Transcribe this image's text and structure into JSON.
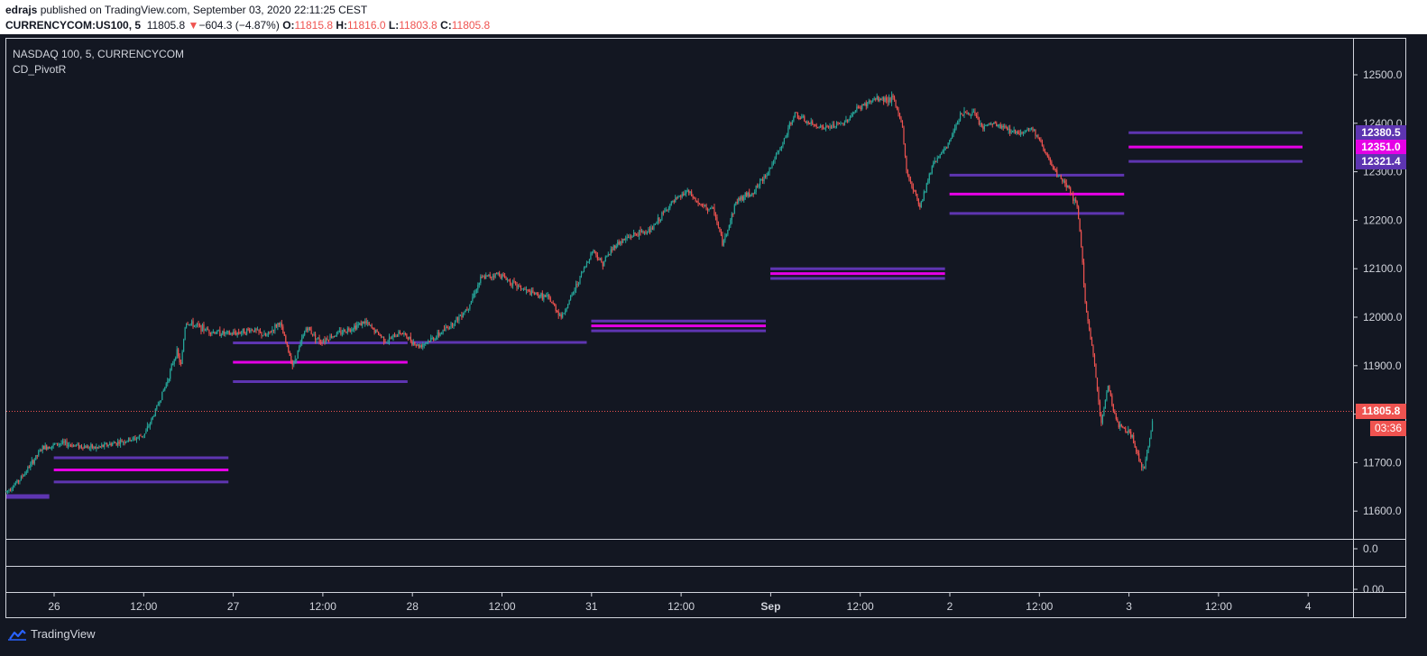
{
  "header": {
    "publisher": "edrajs",
    "published_text": "published on TradingView.com, September 03, 2020 22:11:25 CEST",
    "symbol": "CURRENCYCOM:US100, 5",
    "last": "11805.8",
    "change_arrow": "▼",
    "change": "−604.3 (−4.87%)",
    "o_label": "O:",
    "o_value": "11815.8",
    "h_label": "H:",
    "h_value": "11816.0",
    "l_label": "L:",
    "l_value": "11803.8",
    "c_label": "C:",
    "c_value": "11805.8"
  },
  "legend": {
    "title": "NASDAQ 100, 5, CURRENCYCOM",
    "indicator": "CD_PivotR"
  },
  "footer": {
    "brand": "TradingView"
  },
  "colors": {
    "background": "#131722",
    "up": "#26a69a",
    "down": "#ef5350",
    "pivot": "#e600e6",
    "support_resistance": "#5e35b1",
    "price_line": "#ef5350"
  },
  "price_tags": {
    "r1": "12380.5",
    "pivot": "12351.0",
    "s1": "12321.4",
    "last": "11805.8",
    "countdown": "03:36"
  },
  "sub_pane_labels": [
    "0.0",
    "0.00"
  ],
  "chart_data": {
    "type": "candlestick",
    "title": "NASDAQ 100, 5, CURRENCYCOM",
    "y_ticks": [
      "12500.0",
      "12400.0",
      "12300.0",
      "12200.0",
      "12100.0",
      "12000.0",
      "11900.0",
      "11800.0",
      "11700.0",
      "11600.0"
    ],
    "y_range": [
      11540,
      12560
    ],
    "x_ticks": [
      "26",
      "12:00",
      "27",
      "12:00",
      "28",
      "12:00",
      "31",
      "12:00",
      "Sep",
      "12:00",
      "2",
      "12:00",
      "3",
      "12:00",
      "4"
    ],
    "price_path": [
      [
        0.0,
        11640
      ],
      [
        0.3,
        11665
      ],
      [
        0.5,
        11690
      ],
      [
        0.8,
        11730
      ],
      [
        1.2,
        11740
      ],
      [
        1.6,
        11735
      ],
      [
        2.0,
        11730
      ],
      [
        2.4,
        11740
      ],
      [
        2.9,
        11750
      ],
      [
        3.1,
        11760
      ],
      [
        3.3,
        11800
      ],
      [
        3.6,
        11870
      ],
      [
        3.8,
        11930
      ],
      [
        3.9,
        11900
      ],
      [
        4.0,
        11990
      ],
      [
        4.3,
        11980
      ],
      [
        4.6,
        11970
      ],
      [
        5.0,
        11965
      ],
      [
        5.5,
        11975
      ],
      [
        5.8,
        11960
      ],
      [
        6.1,
        11990
      ],
      [
        6.4,
        11900
      ],
      [
        6.7,
        11980
      ],
      [
        7.0,
        11950
      ],
      [
        7.5,
        11970
      ],
      [
        8.0,
        11990
      ],
      [
        8.5,
        11950
      ],
      [
        8.8,
        11970
      ],
      [
        9.2,
        11940
      ],
      [
        9.6,
        11960
      ],
      [
        10.0,
        11990
      ],
      [
        10.3,
        12020
      ],
      [
        10.6,
        12080
      ],
      [
        11.0,
        12090
      ],
      [
        11.3,
        12070
      ],
      [
        11.7,
        12050
      ],
      [
        12.1,
        12040
      ],
      [
        12.4,
        12000
      ],
      [
        12.8,
        12080
      ],
      [
        13.1,
        12140
      ],
      [
        13.3,
        12110
      ],
      [
        13.6,
        12150
      ],
      [
        14.0,
        12170
      ],
      [
        14.4,
        12180
      ],
      [
        14.8,
        12230
      ],
      [
        15.2,
        12260
      ],
      [
        15.5,
        12230
      ],
      [
        15.8,
        12220
      ],
      [
        16.0,
        12150
      ],
      [
        16.3,
        12240
      ],
      [
        16.7,
        12260
      ],
      [
        17.0,
        12300
      ],
      [
        17.3,
        12350
      ],
      [
        17.6,
        12420
      ],
      [
        17.9,
        12400
      ],
      [
        18.3,
        12390
      ],
      [
        18.7,
        12400
      ],
      [
        19.0,
        12430
      ],
      [
        19.4,
        12450
      ],
      [
        19.8,
        12450
      ],
      [
        20.0,
        12400
      ],
      [
        20.1,
        12300
      ],
      [
        20.4,
        12230
      ],
      [
        20.7,
        12320
      ],
      [
        21.0,
        12350
      ],
      [
        21.3,
        12420
      ],
      [
        21.6,
        12420
      ],
      [
        21.8,
        12390
      ],
      [
        22.0,
        12400
      ],
      [
        22.3,
        12390
      ],
      [
        22.6,
        12380
      ],
      [
        22.9,
        12390
      ],
      [
        23.1,
        12360
      ],
      [
        23.4,
        12300
      ],
      [
        23.7,
        12270
      ],
      [
        23.9,
        12230
      ],
      [
        24.0,
        12150
      ],
      [
        24.1,
        12020
      ],
      [
        24.3,
        11900
      ],
      [
        24.45,
        11780
      ],
      [
        24.6,
        11860
      ],
      [
        24.8,
        11780
      ],
      [
        25.1,
        11760
      ],
      [
        25.4,
        11680
      ],
      [
        25.6,
        11790
      ]
    ],
    "pivot_segments": [
      {
        "day": 0,
        "r1": null,
        "p": null,
        "s1": 11630,
        "span": [
          0.0,
          1.0
        ]
      },
      {
        "day": 1,
        "r1": 11710,
        "p": 11685,
        "s1": 11660,
        "span": [
          1.0,
          5.0
        ]
      },
      {
        "day": 2,
        "r1": 11947,
        "p": 11907,
        "s1": 11867,
        "span": [
          5.0,
          9.0
        ]
      },
      {
        "day": 3,
        "r1": 11948,
        "p": 11948,
        "s1": 11948,
        "span": [
          9.0,
          13.0
        ]
      },
      {
        "day": 4,
        "r1": 11992,
        "p": 11982,
        "s1": 11972,
        "span": [
          13.0,
          17.0
        ]
      },
      {
        "day": 5,
        "r1": 12100,
        "p": 12090,
        "s1": 12080,
        "span": [
          17.0,
          21.0
        ]
      },
      {
        "day": 6,
        "r1": 12293,
        "p": 12254,
        "s1": 12214,
        "span": [
          21.0,
          25.0
        ]
      },
      {
        "day": 7,
        "r1": 12380.5,
        "p": 12351.0,
        "s1": 12321.4,
        "span": [
          25.0,
          29.0
        ]
      }
    ],
    "last_price": 11805.8
  }
}
